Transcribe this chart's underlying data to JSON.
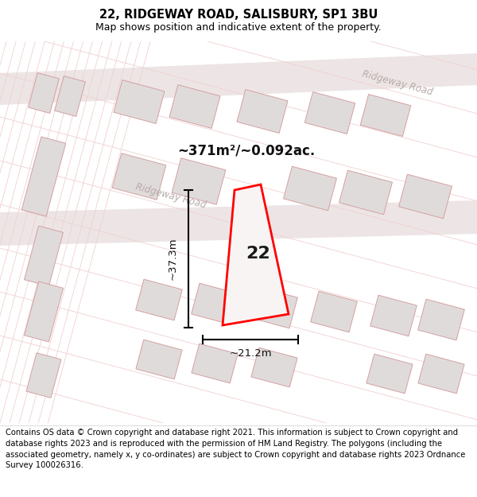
{
  "title": "22, RIDGEWAY ROAD, SALISBURY, SP1 3BU",
  "subtitle": "Map shows position and indicative extent of the property.",
  "area_label": "~371m²/~0.092ac.",
  "number_label": "22",
  "dim_width": "~21.2m",
  "dim_height": "~37.3m",
  "road_label_1": "Ridgeway Road",
  "road_label_2": "Ridgeway Road",
  "footer_text": "Contains OS data © Crown copyright and database right 2021. This information is subject to Crown copyright and database rights 2023 and is reproduced with the permission of HM Land Registry. The polygons (including the associated geometry, namely x, y co-ordinates) are subject to Crown copyright and database rights 2023 Ordnance Survey 100026316.",
  "map_bg": "#faf8f8",
  "road_band_color": "#ede5e5",
  "road_line_color": "#f0d0d0",
  "building_fill": "#e0dbdb",
  "building_edge": "#d4a0a0",
  "plot_fill": "#f5f0f0",
  "red_outline": "#ff0000",
  "title_fontsize": 10.5,
  "subtitle_fontsize": 9,
  "footer_fontsize": 7.2,
  "figsize": [
    6.0,
    6.25
  ],
  "dpi": 100
}
